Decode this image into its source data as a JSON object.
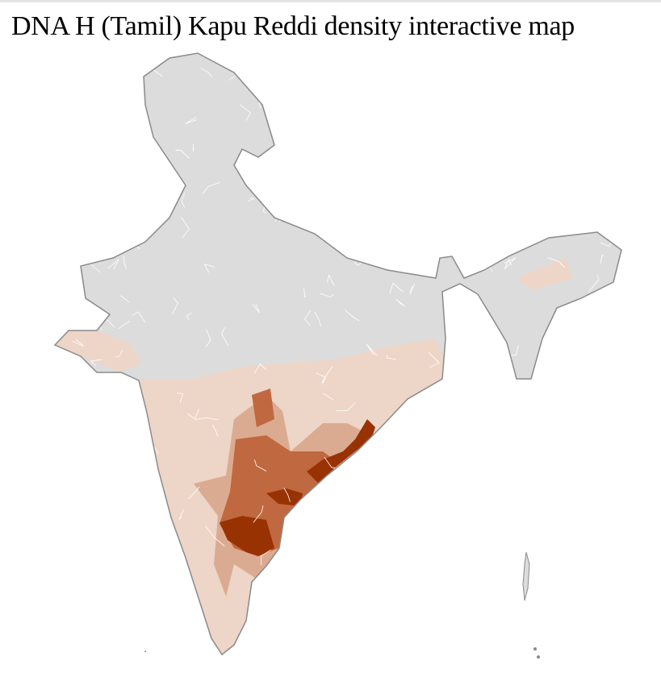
{
  "title": "DNA H (Tamil) Kapu Reddi density interactive map",
  "map": {
    "type": "choropleth",
    "region": "India districts",
    "colors": {
      "no_data": "#dcdcdc",
      "low": "#edd5c8",
      "mid_low": "#dbab91",
      "mid_high": "#c0683f",
      "high": "#993203",
      "border": "#8a8a8a",
      "district_line": "#ffffff"
    }
  }
}
